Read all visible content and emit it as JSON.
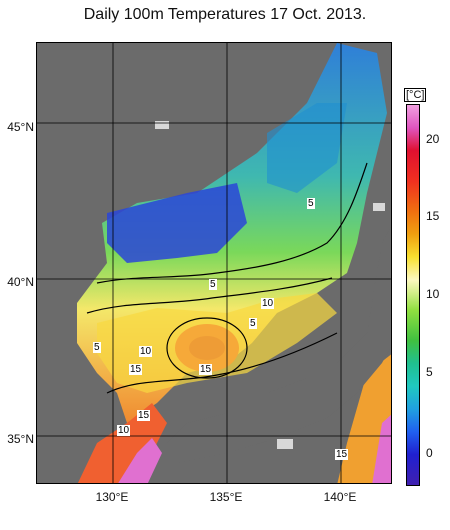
{
  "title": "Daily 100m Temperatures 17 Oct. 2013.",
  "map": {
    "lat_labels": [
      "45°N",
      "40°N",
      "35°N"
    ],
    "lon_labels": [
      "130°E",
      "135°E",
      "140°E"
    ],
    "land_color": "#6b6b6b",
    "no_data_color": "#d8d8d8"
  },
  "colorbar": {
    "unit": "[°C]",
    "ticks": [
      "20",
      "15",
      "10",
      "5",
      "0"
    ],
    "min": -2,
    "max": 22
  },
  "contour_labels": [
    "5",
    "5",
    "10",
    "5",
    "5",
    "10",
    "15",
    "15",
    "15",
    "10",
    "15"
  ]
}
